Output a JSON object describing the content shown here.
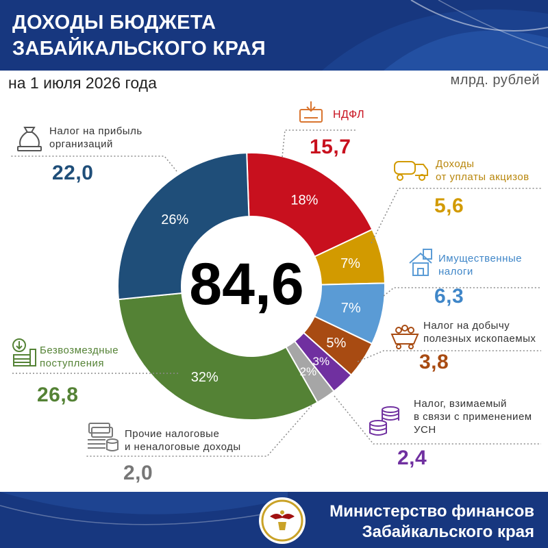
{
  "header": {
    "title_line1": "ДОХОДЫ БЮДЖЕТА",
    "title_line2": "ЗАБАЙКАЛЬСКОГО КРАЯ"
  },
  "subtitle": "на 1 июля 2026 года",
  "units": "млрд. рублей",
  "total": "84,6",
  "footer": {
    "line1": "Министерство финансов",
    "line2": "Забайкальского края"
  },
  "colors": {
    "header_bg": "#17377f"
  },
  "chart_data": {
    "type": "pie",
    "donut": true,
    "center_label": "84,6",
    "slices": [
      {
        "name": "НДФЛ",
        "value_label": "15,7",
        "value": 15.7,
        "percent_label": "18%",
        "percent": 18,
        "color": "#c8101e"
      },
      {
        "name": "Доходы от уплаты акцизов",
        "value_label": "5,6",
        "value": 5.6,
        "percent_label": "7%",
        "percent": 7,
        "color": "#d29a00"
      },
      {
        "name": "Имущественные налоги",
        "value_label": "6,3",
        "value": 6.3,
        "percent_label": "7%",
        "percent": 7,
        "color": "#5a9bd5"
      },
      {
        "name": "Налог на добычу полезных ископаемых",
        "value_label": "3,8",
        "value": 3.8,
        "percent_label": "5%",
        "percent": 5,
        "color": "#a84b12"
      },
      {
        "name": "Налог, взимаемый в связи с применением УСН",
        "value_label": "2,4",
        "value": 2.4,
        "percent_label": "3%",
        "percent": 3,
        "color": "#7030a0"
      },
      {
        "name": "Прочие налоговые и неналоговые доходы",
        "value_label": "2,0",
        "value": 2.0,
        "percent_label": "2%",
        "percent": 2,
        "color": "#a6a6a6"
      },
      {
        "name": "Безвозмездные поступления",
        "value_label": "26,8",
        "value": 26.8,
        "percent_label": "32%",
        "percent": 32,
        "color": "#548235"
      },
      {
        "name": "Налог на прибыль организаций",
        "value_label": "22,0",
        "value": 22.0,
        "percent_label": "26%",
        "percent": 26,
        "color": "#1f4e79"
      }
    ]
  },
  "labels": {
    "ndfl": "НДФЛ",
    "excise_l1": "Доходы",
    "excise_l2": "от уплаты акцизов",
    "property_l1": "Имущественные",
    "property_l2": "налоги",
    "mining_l1": "Налог на добычу",
    "mining_l2": "полезных ископаемых",
    "usn_l1": "Налог, взимаемый",
    "usn_l2": "в связи с применением",
    "usn_l3": "УСН",
    "other_l1": "Прочие налоговые",
    "other_l2": "и неналоговые доходы",
    "grants_l1": "Безвозмездные",
    "grants_l2": "поступления",
    "profit_l1": "Налог на прибыль",
    "profit_l2": "организаций"
  },
  "icons": [
    "money-bag-icon",
    "tax-document-icon",
    "fuel-truck-icon",
    "house-icon",
    "mining-cart-icon",
    "coin-stack-icon",
    "banknote-stack-icon",
    "incoming-money-icon",
    "ministry-logo"
  ]
}
